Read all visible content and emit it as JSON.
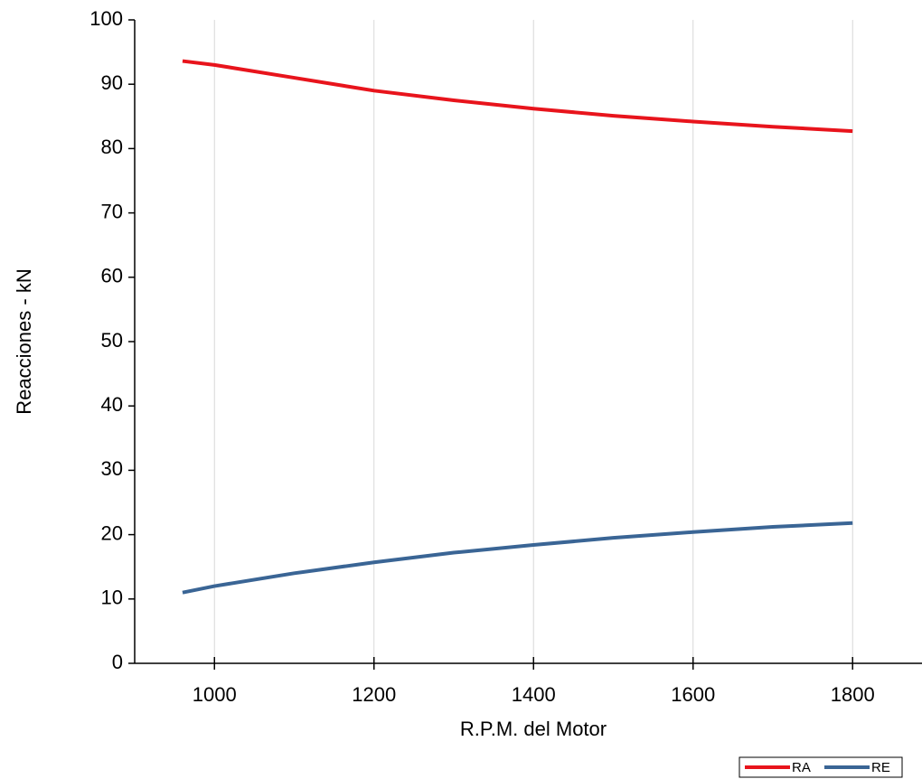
{
  "chart_data": {
    "type": "line",
    "x_label": "R.P.M. del Motor",
    "y_label": "Reacciones - kN",
    "x": [
      960,
      1000,
      1100,
      1200,
      1300,
      1400,
      1500,
      1600,
      1700,
      1800
    ],
    "series": [
      {
        "name": "RA",
        "color": "#e8141c",
        "values": [
          93.6,
          93.0,
          91.0,
          89.0,
          87.5,
          86.2,
          85.1,
          84.2,
          83.4,
          82.7
        ]
      },
      {
        "name": "RE",
        "color": "#3a6595",
        "values": [
          11.0,
          12.0,
          14.0,
          15.7,
          17.2,
          18.4,
          19.5,
          20.4,
          21.2,
          21.8
        ]
      }
    ],
    "xlim": [
      900,
      1887
    ],
    "xticks": [
      1000,
      1200,
      1400,
      1600,
      1800
    ],
    "ylim": [
      0,
      100
    ],
    "yticks": [
      0,
      10,
      20,
      30,
      40,
      50,
      60,
      70,
      80,
      90,
      100
    ],
    "grid": "x",
    "legend": "bottom-right"
  }
}
